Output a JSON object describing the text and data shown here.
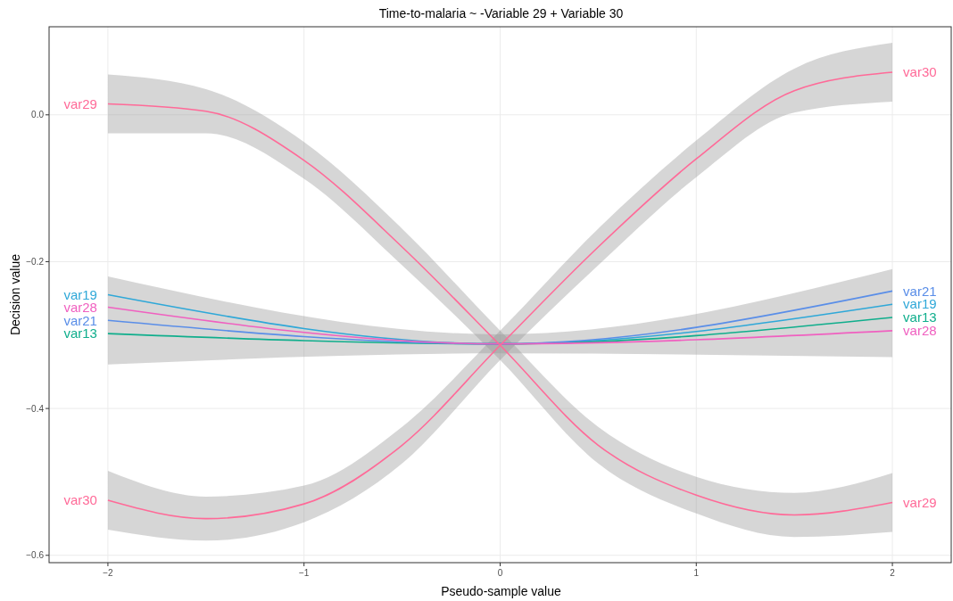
{
  "chart_data": {
    "type": "line",
    "title": "Time-to-malaria ~ -Variable 29 + Variable 30",
    "xlabel": "Pseudo-sample value",
    "ylabel": "Decision value",
    "xlim": [
      -2.3,
      2.3
    ],
    "xticks": [
      {
        "value": -2,
        "label": "−2"
      },
      {
        "value": -1,
        "label": "−1"
      },
      0,
      1,
      2
    ],
    "ylim": [
      -0.61,
      0.12
    ],
    "yticks": [
      {
        "value": -0.6,
        "label": "−0.6"
      },
      {
        "value": -0.4,
        "label": "−0.4"
      },
      {
        "value": -0.2,
        "label": "−0.2"
      },
      {
        "value": 0,
        "label": "0.0"
      }
    ],
    "grid": true,
    "legend": false,
    "marker": "none",
    "line_style": "solid",
    "series": [
      {
        "name": "var19",
        "color": "#2fa8d8",
        "x": [
          -2,
          0,
          2
        ],
        "values": [
          -0.245,
          -0.312,
          -0.258
        ],
        "lower": [
          -0.34,
          -0.325,
          -0.33
        ],
        "upper": [
          -0.22,
          -0.299,
          -0.21
        ]
      },
      {
        "name": "var13",
        "color": "#0fae8c",
        "x": [
          -2,
          0,
          2
        ],
        "values": [
          -0.298,
          -0.312,
          -0.276
        ]
      },
      {
        "name": "var21",
        "color": "#5a8ee8",
        "x": [
          -2,
          0,
          2
        ],
        "values": [
          -0.28,
          -0.312,
          -0.24
        ]
      },
      {
        "name": "var28",
        "color": "#f060c0",
        "x": [
          -2,
          0,
          2
        ],
        "values": [
          -0.262,
          -0.312,
          -0.294
        ]
      },
      {
        "name": "var29",
        "color": "#ff6a98",
        "x": [
          -2,
          -1.5,
          -1,
          -0.5,
          0,
          0.5,
          1,
          1.5,
          2
        ],
        "values": [
          0.015,
          0.005,
          -0.062,
          -0.18,
          -0.314,
          -0.45,
          -0.518,
          -0.545,
          -0.528
        ],
        "lower": [
          -0.025,
          -0.025,
          -0.087,
          -0.205,
          -0.334,
          -0.475,
          -0.543,
          -0.575,
          -0.568
        ],
        "upper": [
          0.055,
          0.035,
          -0.037,
          -0.155,
          -0.294,
          -0.425,
          -0.493,
          -0.515,
          -0.488
        ]
      },
      {
        "name": "var30",
        "color": "#ff6a98",
        "x": [
          -2,
          -1.5,
          -1,
          -0.5,
          0,
          0.5,
          1,
          1.5,
          2
        ],
        "values": [
          -0.525,
          -0.55,
          -0.53,
          -0.45,
          -0.314,
          -0.18,
          -0.06,
          0.033,
          0.058
        ],
        "lower": [
          -0.565,
          -0.58,
          -0.555,
          -0.475,
          -0.334,
          -0.205,
          -0.085,
          0.003,
          0.018
        ],
        "upper": [
          -0.485,
          -0.52,
          -0.505,
          -0.425,
          -0.294,
          -0.155,
          -0.035,
          0.063,
          0.098
        ]
      }
    ]
  }
}
